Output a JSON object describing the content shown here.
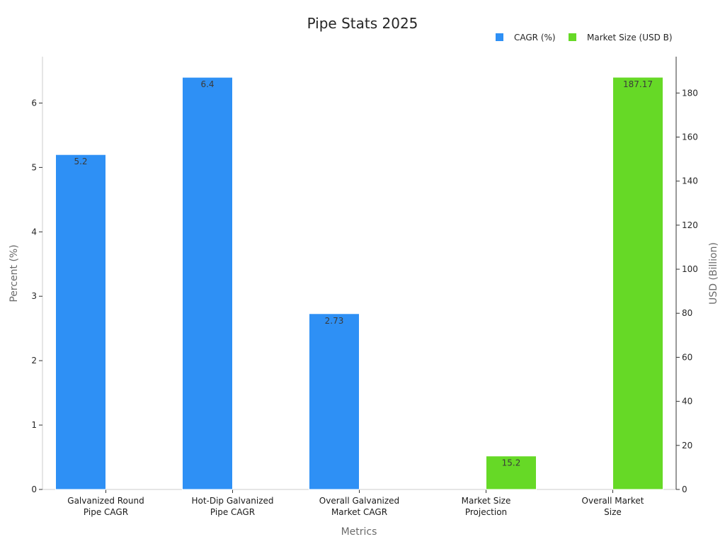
{
  "chart_data": {
    "type": "bar",
    "title": "Pipe Stats 2025",
    "xlabel": "Metrics",
    "ylabel": "Percent (%)",
    "y2label": "USD (Billion)",
    "categories": [
      [
        "Galvanized Round",
        "Pipe CAGR"
      ],
      [
        "Hot-Dip Galvanized",
        "Pipe CAGR"
      ],
      [
        "Overall Galvanized",
        "Market CAGR"
      ],
      [
        "Market Size",
        "Projection"
      ],
      [
        "Overall Market",
        "Size"
      ]
    ],
    "series": [
      {
        "name": "CAGR (%)",
        "axis": "left",
        "color": "#2e90f5",
        "values": [
          5.2,
          6.4,
          2.73,
          null,
          null
        ],
        "labels": [
          "5.2",
          "6.4",
          "2.73",
          null,
          null
        ]
      },
      {
        "name": "Market Size (USD B)",
        "axis": "right",
        "color": "#66d926",
        "values": [
          null,
          null,
          null,
          15.2,
          187.17
        ],
        "labels": [
          null,
          null,
          null,
          "15.2",
          "187.17"
        ]
      }
    ],
    "ylim": [
      0,
      6.72
    ],
    "y2lim": [
      0,
      196.5
    ],
    "yticks": [
      "0",
      "1",
      "2",
      "3",
      "4",
      "5",
      "6"
    ],
    "y2ticks": [
      "0",
      "20",
      "40",
      "60",
      "80",
      "100",
      "120",
      "140",
      "160",
      "180"
    ],
    "legend": "top-right",
    "grid": false
  }
}
